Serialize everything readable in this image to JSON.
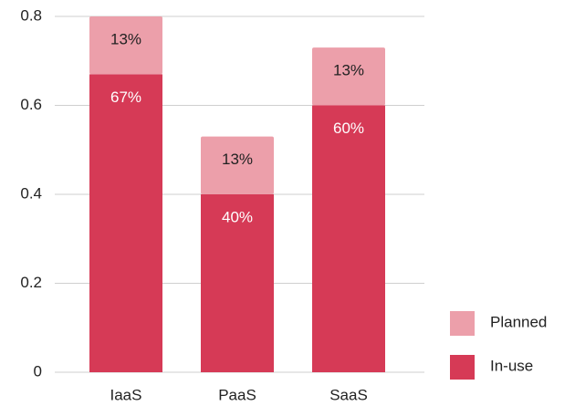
{
  "chart_data": {
    "type": "stacked_bar",
    "categories": [
      "IaaS",
      "PaaS",
      "SaaS"
    ],
    "series": [
      {
        "name": "In-use",
        "color": "#d63a56",
        "values": [
          0.67,
          0.4,
          0.6
        ],
        "value_labels": [
          "67%",
          "40%",
          "60%"
        ]
      },
      {
        "name": "Planned",
        "color": "#ec9faa",
        "values": [
          0.13,
          0.13,
          0.13
        ],
        "value_labels": [
          "13%",
          "13%",
          "13%"
        ]
      }
    ],
    "ylim": [
      0,
      0.8
    ],
    "yticks": [
      0,
      0.2,
      0.4,
      0.6,
      0.8
    ],
    "grid": true,
    "legend": "right"
  }
}
